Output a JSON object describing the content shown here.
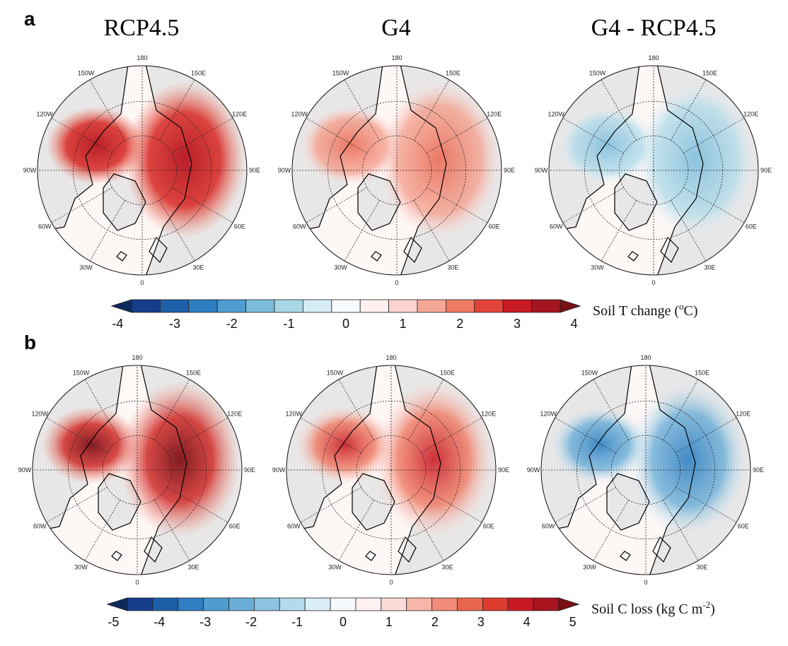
{
  "panel_a_label": "a",
  "panel_b_label": "b",
  "column_titles": [
    "RCP4.5",
    "G4",
    "G4 - RCP4.5"
  ],
  "longitude_labels": [
    "180",
    "150E",
    "120E",
    "90E",
    "60E",
    "30E",
    "0",
    "30W",
    "60W",
    "90W",
    "120W",
    "150W"
  ],
  "colors": {
    "land": "#e8e6e6",
    "ocean_ring": "#fdf7f6",
    "coast": "#000000",
    "grid": "#222222"
  },
  "colorbar_a": {
    "title": "Soil T change (",
    "unit_sup": "o",
    "unit_end": "C)",
    "ticks": [
      "-4",
      "-3",
      "-2",
      "-1",
      "0",
      "1",
      "2",
      "3",
      "4"
    ],
    "colors": [
      "#0d2a5e",
      "#153e8a",
      "#1d5fa8",
      "#2f7ec1",
      "#4f9dd0",
      "#7bbbdc",
      "#a8d6e6",
      "#d6ecf4",
      "#f7fbfd",
      "#fdf0ef",
      "#fbd4cf",
      "#f6a897",
      "#ef7a63",
      "#e3443a",
      "#c81a24",
      "#a3151f",
      "#7a1016"
    ]
  },
  "colorbar_b": {
    "title": "Soil C loss (kg C m",
    "unit_sup": "-2",
    "unit_end": ")",
    "ticks": [
      "-5",
      "-4",
      "-3",
      "-2",
      "-1",
      "0",
      "1",
      "2",
      "3",
      "4",
      "5"
    ],
    "colors": [
      "#0d2a5e",
      "#153e8a",
      "#1d5fa8",
      "#2f7ec1",
      "#4f9dd0",
      "#6aaed7",
      "#8cc3e0",
      "#b4dbeb",
      "#d9eef6",
      "#f3f9fc",
      "#fdf1f1",
      "#fbdcd8",
      "#f7b6a9",
      "#f08c77",
      "#e8664f",
      "#dc3b2e",
      "#c81a24",
      "#a8151e",
      "#7a1016"
    ]
  }
}
